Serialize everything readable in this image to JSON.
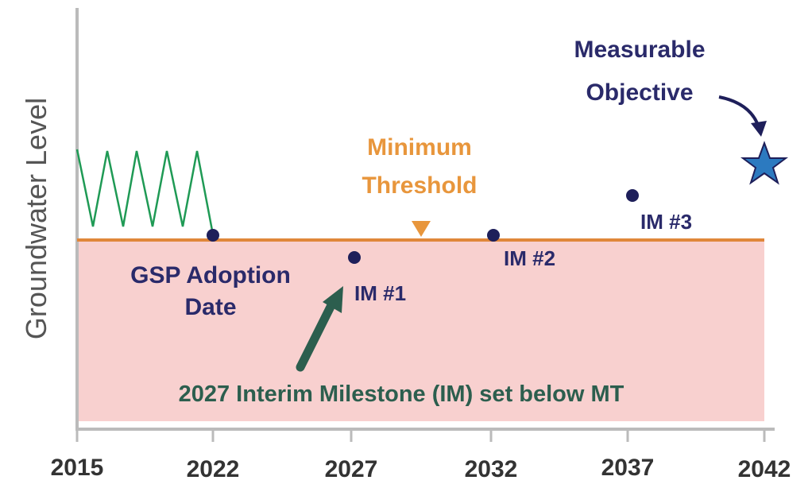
{
  "axis": {
    "y_label": "Groundwater Level",
    "x_labels": [
      "2015",
      "2022",
      "2027",
      "2032",
      "2037",
      "2042"
    ]
  },
  "labels": {
    "measurable_objective": [
      "Measurable",
      "Objective"
    ],
    "minimum_threshold": [
      "Minimum",
      "Threshold"
    ],
    "gsp_adoption": [
      "GSP Adoption",
      "Date"
    ],
    "im1": "IM #1",
    "im2": "IM #2",
    "im3": "IM #3",
    "note": "2027 Interim Milestone (IM) set below MT"
  }
}
